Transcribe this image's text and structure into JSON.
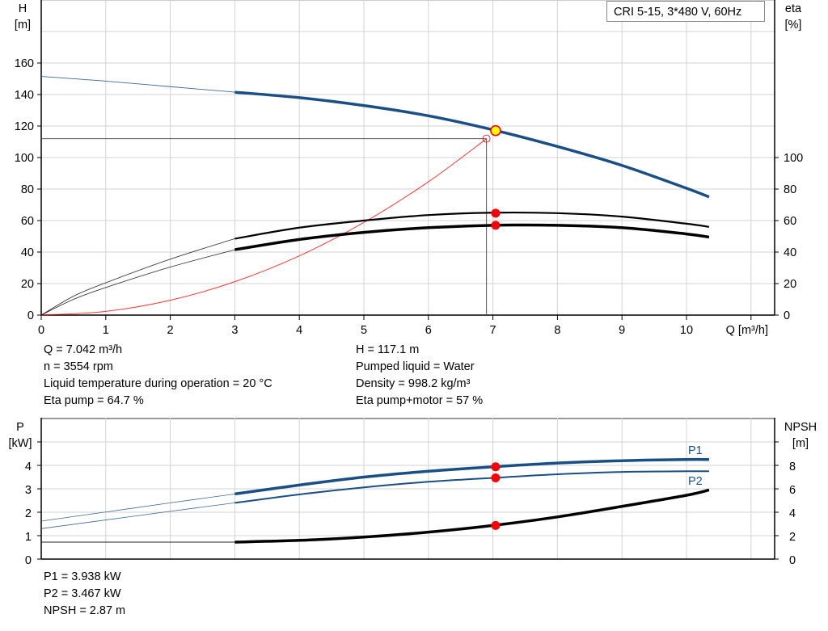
{
  "legend_label": "CRI 5-15, 3*480 V, 60Hz",
  "colors": {
    "head": "#1a4f86",
    "efficiency": "#000000",
    "system": "#ff0000",
    "power": "#1a4f86",
    "npsh": "#000000",
    "duty_point": "#ff0000",
    "head_duty_point": "#ffff00",
    "grid": "#d3d3d3"
  },
  "info_top_left": [
    "Q = 7.042 m³/h",
    "n = 3554 rpm",
    "Liquid temperature during operation = 20 °C",
    "Eta pump = 64.7 %"
  ],
  "info_top_right": [
    "H = 117.1 m",
    "Pumped liquid = Water",
    "Density = 998.2 kg/m³",
    "Eta pump+motor = 57 %"
  ],
  "info_bottom": [
    "P1 = 3.938 kW",
    "P2 = 3.467 kW",
    "NPSH = 2.87 m"
  ],
  "chart_data": [
    {
      "type": "line",
      "xlabel": "Q [m³/h]",
      "ylabel": [
        "H",
        "[m]"
      ],
      "y2label": [
        "eta",
        "[%]"
      ],
      "xlim": [
        0,
        11.4
      ],
      "ylim": [
        0,
        200
      ],
      "y2lim": [
        0,
        200
      ],
      "xticks": [
        0,
        1,
        2,
        3,
        4,
        5,
        6,
        7,
        8,
        9,
        10
      ],
      "yticks": [
        0,
        20,
        40,
        60,
        80,
        100,
        120,
        140,
        160
      ],
      "y2ticks": [
        0,
        20,
        40,
        60,
        80,
        100
      ],
      "grid": true,
      "operating_range": [
        3,
        10.35
      ],
      "series": [
        {
          "key": "head",
          "axis": "left",
          "x": [
            0,
            1,
            2,
            3,
            4,
            5,
            6,
            7,
            8,
            9,
            10,
            10.35
          ],
          "y": [
            151.5,
            148.5,
            145,
            141.5,
            138,
            133,
            126.5,
            117.6,
            107,
            95,
            80.5,
            75
          ]
        },
        {
          "key": "eta-pump",
          "axis": "right",
          "x": [
            0,
            0.5,
            1,
            2,
            3,
            4,
            5,
            6,
            7,
            8,
            9,
            10,
            10.35
          ],
          "y": [
            0,
            12,
            20.5,
            35.5,
            48.5,
            55.5,
            60,
            63.5,
            65,
            64.7,
            62.5,
            58,
            56
          ]
        },
        {
          "key": "eta-pump-motor",
          "axis": "right",
          "x": [
            0,
            0.5,
            1,
            2,
            3,
            4,
            5,
            6,
            7,
            8,
            9,
            10,
            10.35
          ],
          "y": [
            0,
            10,
            17.5,
            30.5,
            41.5,
            48,
            52.5,
            55.5,
            57,
            57,
            55.5,
            51.5,
            49.5
          ]
        },
        {
          "key": "system-curve",
          "axis": "left",
          "x": [
            0,
            1,
            2,
            3,
            4,
            5,
            6,
            6.9
          ],
          "y": [
            0,
            2.35,
            9.4,
            21.2,
            37.6,
            58.8,
            84.6,
            111.9
          ]
        }
      ],
      "duty_point": {
        "q": 7.042,
        "h": 117.1,
        "eta_pump": 64.7,
        "eta_pump_motor": 57
      },
      "system_point": {
        "q": 6.9,
        "h": 112
      }
    },
    {
      "type": "line",
      "ylabel": [
        "P",
        "[kW]"
      ],
      "y2label": [
        "NPSH",
        "[m]"
      ],
      "xlim": [
        0,
        11.4
      ],
      "ylim": [
        0,
        6
      ],
      "y2lim": [
        0,
        12
      ],
      "yticks": [
        0,
        1,
        2,
        3,
        4
      ],
      "y2ticks": [
        0,
        2,
        4,
        6,
        8
      ],
      "grid": true,
      "operating_range": [
        3,
        10.35
      ],
      "series": [
        {
          "key": "p1",
          "name": "P1",
          "axis": "left",
          "x": [
            0,
            1,
            2,
            3,
            4,
            5,
            6,
            7,
            8,
            9,
            10,
            10.35
          ],
          "y": [
            1.62,
            2.01,
            2.4,
            2.78,
            3.16,
            3.5,
            3.75,
            3.94,
            4.1,
            4.2,
            4.25,
            4.25
          ]
        },
        {
          "key": "p2",
          "name": "P2",
          "axis": "left",
          "x": [
            0,
            1,
            2,
            3,
            4,
            5,
            6,
            7,
            8,
            9,
            10,
            10.35
          ],
          "y": [
            1.3,
            1.67,
            2.04,
            2.4,
            2.76,
            3.06,
            3.3,
            3.467,
            3.62,
            3.72,
            3.75,
            3.75
          ]
        },
        {
          "key": "npsh",
          "axis": "right",
          "x": [
            0,
            3,
            4,
            5,
            6,
            7,
            8,
            9,
            10,
            10.35
          ],
          "y": [
            1.45,
            1.45,
            1.6,
            1.88,
            2.3,
            2.87,
            3.6,
            4.5,
            5.45,
            5.9
          ]
        }
      ],
      "duty_point": {
        "q": 7.042,
        "p1": 3.938,
        "p2": 3.467,
        "npsh": 2.87
      }
    }
  ]
}
